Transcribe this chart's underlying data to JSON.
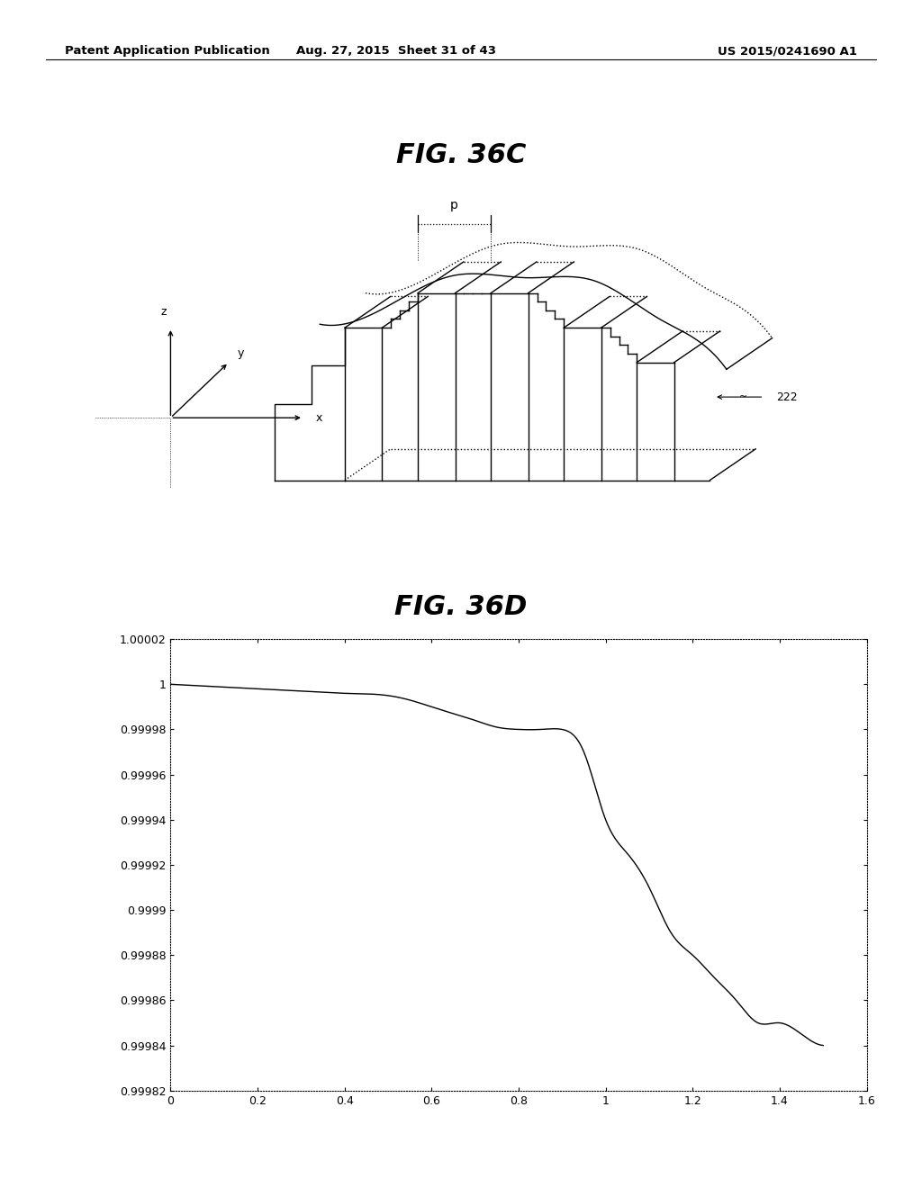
{
  "header_left": "Patent Application Publication",
  "header_mid": "Aug. 27, 2015  Sheet 31 of 43",
  "header_right": "US 2015/0241690 A1",
  "fig_top_title": "FIG. 36C",
  "fig_bottom_title": "FIG. 36D",
  "label_222": "222",
  "label_p": "p",
  "graph_xlim": [
    0,
    1.6
  ],
  "graph_ylim": [
    0.99982,
    1.00002
  ],
  "graph_xticks": [
    0,
    0.2,
    0.4,
    0.6,
    0.8,
    1.0,
    1.2,
    1.4,
    1.6
  ],
  "graph_yticks": [
    0.99982,
    0.99984,
    0.99986,
    0.99988,
    0.9999,
    0.99992,
    0.99994,
    0.99996,
    0.99998,
    1.0,
    1.00002
  ],
  "graph_ytick_labels": [
    "0.99982",
    "0.99984",
    "0.99986",
    "0.99988",
    "0.9999",
    "0.99992",
    "0.99994",
    "0.99996",
    "0.99998",
    "1",
    "1.00002"
  ],
  "graph_xtick_labels": [
    "0",
    "0.2",
    "0.4",
    "0.6",
    "0.8",
    "1",
    "1.2",
    "1.4",
    "1.6"
  ],
  "background_color": "#ffffff",
  "line_color": "#000000",
  "text_color": "#000000",
  "header_fontsize": 9.5,
  "fig_title_fontsize": 22,
  "graph_label_fontsize": 9
}
